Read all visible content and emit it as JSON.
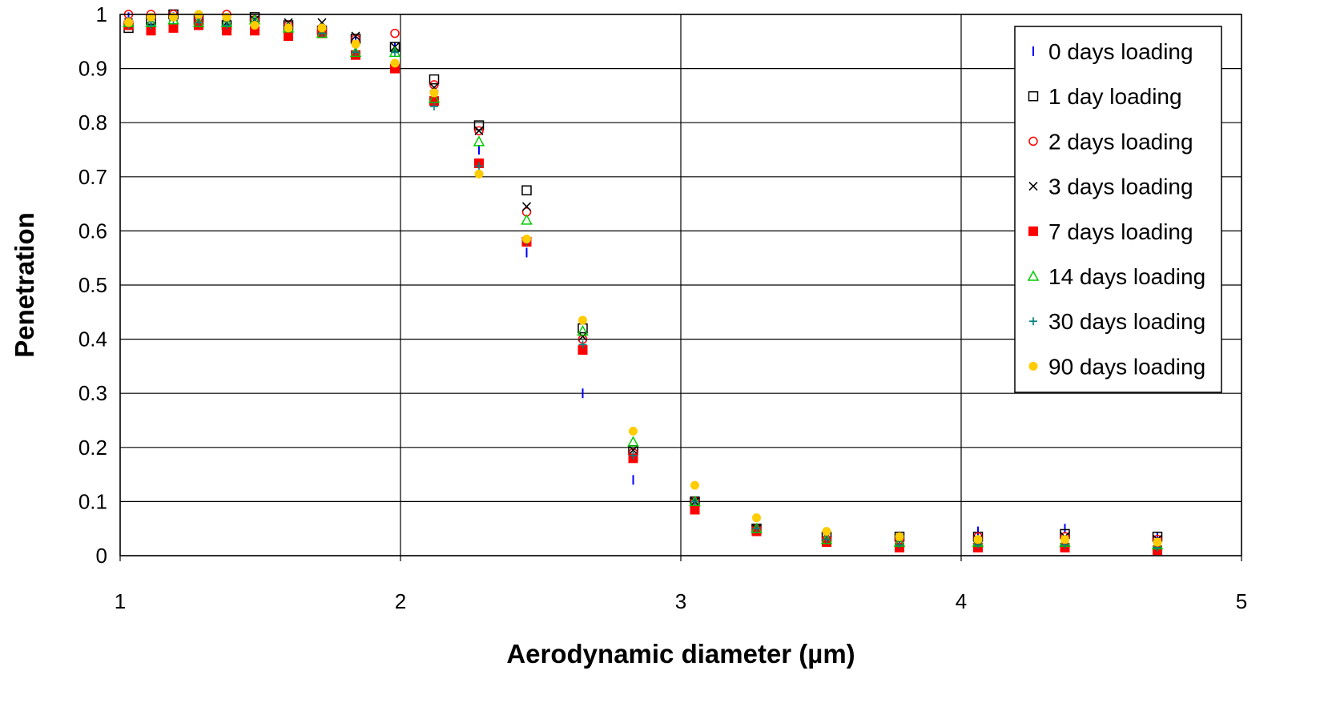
{
  "chart_data": {
    "type": "scatter",
    "title": "",
    "xlabel": "Aerodynamic diameter (µm)",
    "ylabel": "Penetration",
    "xlim": [
      1,
      5
    ],
    "ylim": [
      0,
      1
    ],
    "x_ticks": [
      "1",
      "2",
      "3",
      "4",
      "5"
    ],
    "y_ticks": [
      "0",
      "0.1",
      "0.2",
      "0.3",
      "0.4",
      "0.5",
      "0.6",
      "0.7",
      "0.8",
      "0.9",
      "1"
    ],
    "grid": true,
    "legend_position": "top-right",
    "x": [
      1.03,
      1.11,
      1.19,
      1.28,
      1.38,
      1.48,
      1.6,
      1.72,
      1.84,
      1.98,
      2.12,
      2.28,
      2.45,
      2.65,
      2.83,
      3.05,
      3.27,
      3.52,
      3.78,
      4.06,
      4.37,
      4.7
    ],
    "series": [
      {
        "name": "0 days loading",
        "marker": "vbar",
        "color": "#0000ff",
        "values": [
          0.995,
          0.99,
          0.995,
          0.99,
          0.985,
          0.985,
          0.975,
          0.97,
          0.955,
          0.94,
          0.85,
          0.75,
          0.56,
          0.3,
          0.14,
          0.1,
          0.05,
          0.03,
          0.03,
          0.045,
          0.05,
          0.035
        ]
      },
      {
        "name": "1 day loading",
        "marker": "square-open",
        "color": "#000000",
        "values": [
          0.975,
          0.99,
          1.0,
          0.99,
          0.98,
          0.995,
          0.98,
          0.97,
          0.955,
          0.94,
          0.88,
          0.795,
          0.675,
          0.42,
          0.195,
          0.1,
          0.05,
          0.035,
          0.035,
          0.035,
          0.04,
          0.035
        ]
      },
      {
        "name": "2 days loading",
        "marker": "circle-open",
        "color": "#ff0000",
        "values": [
          1.0,
          1.0,
          1.0,
          0.995,
          1.0,
          0.99,
          0.98,
          0.975,
          0.955,
          0.965,
          0.87,
          0.785,
          0.635,
          0.4,
          0.19,
          0.1,
          0.05,
          0.03,
          0.03,
          0.035,
          0.035,
          0.03
        ]
      },
      {
        "name": "3 days loading",
        "marker": "x",
        "color": "#000000",
        "values": [
          0.985,
          0.99,
          0.995,
          0.99,
          0.985,
          0.99,
          0.985,
          0.985,
          0.96,
          0.94,
          0.865,
          0.785,
          0.645,
          0.405,
          0.195,
          0.1,
          0.05,
          0.035,
          0.03,
          0.03,
          0.035,
          0.03
        ]
      },
      {
        "name": "7 days loading",
        "marker": "square-filled",
        "color": "#ff0000",
        "values": [
          0.98,
          0.97,
          0.975,
          0.98,
          0.97,
          0.97,
          0.96,
          0.965,
          0.925,
          0.9,
          0.84,
          0.725,
          0.58,
          0.38,
          0.18,
          0.085,
          0.045,
          0.025,
          0.015,
          0.015,
          0.015,
          0.01
        ]
      },
      {
        "name": "14 days loading",
        "marker": "triangle-open",
        "color": "#00cc00",
        "values": [
          0.985,
          0.985,
          0.99,
          0.985,
          0.985,
          0.99,
          0.975,
          0.965,
          0.93,
          0.93,
          0.845,
          0.765,
          0.62,
          0.415,
          0.21,
          0.1,
          0.05,
          0.03,
          0.025,
          0.025,
          0.025,
          0.02
        ]
      },
      {
        "name": "30 days loading",
        "marker": "plus",
        "color": "#008080",
        "values": [
          0.98,
          0.98,
          0.99,
          0.985,
          0.98,
          0.985,
          0.975,
          0.965,
          0.93,
          0.93,
          0.83,
          0.72,
          0.58,
          0.39,
          0.185,
          0.1,
          0.05,
          0.03,
          0.02,
          0.02,
          0.02,
          0.015
        ]
      },
      {
        "name": "90 days loading",
        "marker": "circle-filled",
        "color": "#ffcc00",
        "values": [
          0.985,
          0.995,
          0.995,
          1.0,
          0.995,
          0.98,
          0.975,
          0.975,
          0.945,
          0.91,
          0.855,
          0.705,
          0.585,
          0.435,
          0.23,
          0.13,
          0.07,
          0.045,
          0.035,
          0.03,
          0.03,
          0.025
        ]
      }
    ]
  }
}
